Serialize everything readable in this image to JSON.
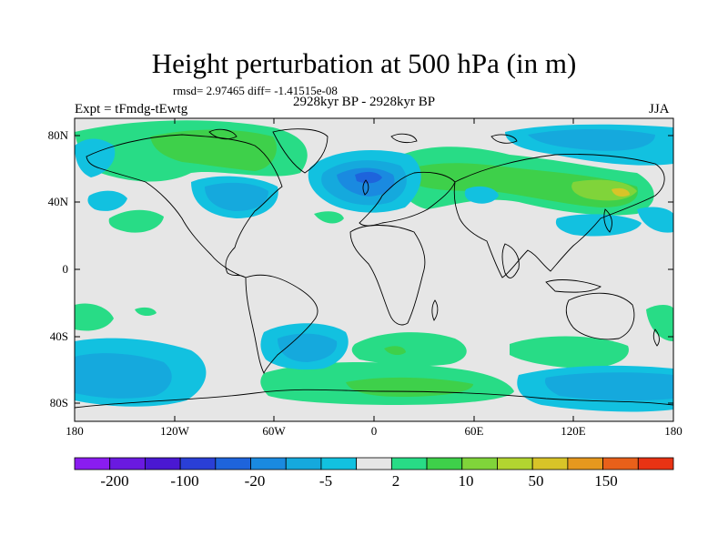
{
  "title": "Height perturbation at 500 hPa (in m)",
  "stats": "rmsd= 2.97465 diff= -1.41515e-08",
  "period": "2928kyr BP - 2928kyr BP",
  "experiment": "Expt = tFmdg-tEwtg",
  "season": "JJA",
  "lat_ticks": [
    "80N",
    "40N",
    "0",
    "40S",
    "80S"
  ],
  "lon_ticks": [
    "180",
    "120W",
    "60W",
    "0",
    "60E",
    "120E",
    "180"
  ],
  "colorbar": {
    "labels": [
      "-200",
      "-100",
      "-20",
      "-5",
      "2",
      "10",
      "50",
      "150"
    ],
    "colors": [
      "#8a1cf0",
      "#6a1ae0",
      "#4a18d2",
      "#2a3fd6",
      "#1e64dc",
      "#1a8ae0",
      "#15a9dd",
      "#12c1e0",
      "#e6e6e6",
      "#28dc86",
      "#3ed04a",
      "#80d43a",
      "#b2d430",
      "#d8c428",
      "#e6981e",
      "#e8601a",
      "#e83314"
    ]
  },
  "map_colors": {
    "background": "#e6e6e6",
    "weak_negative": "#12c1e0",
    "negative": "#15a9dd",
    "strong_negative": "#1a8ae0",
    "stronger_negative": "#1e64dc",
    "weak_positive": "#28dc86",
    "positive": "#3ed04a",
    "strong_positive": "#80d43a",
    "max_positive": "#d8c428"
  }
}
